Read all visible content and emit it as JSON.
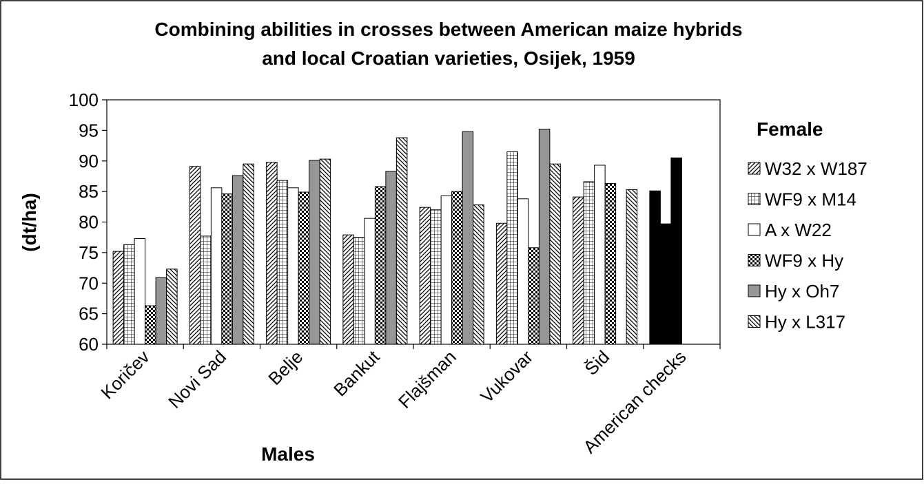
{
  "chart_data": {
    "type": "bar",
    "title_lines": [
      "Combining abilities in crosses between American maize hybrids",
      "and local Croatian varieties, Osijek, 1959"
    ],
    "xlabel": "Males",
    "ylabel": "(dt/ha)",
    "ylim": [
      60,
      100
    ],
    "yticks": [
      60,
      65,
      70,
      75,
      80,
      85,
      90,
      95,
      100
    ],
    "grid": false,
    "legend_title": "Female",
    "legend_position": "right",
    "categories": [
      "Koričev",
      "Novi Sad",
      "Belje",
      "Bankut",
      "Flajšman",
      "Vukovar",
      "Šid",
      "American checks"
    ],
    "series": [
      {
        "name": "W32 x W187",
        "pattern": "diagonal",
        "values": [
          75.2,
          89.1,
          89.8,
          77.9,
          82.4,
          79.8,
          84.1,
          85.1
        ]
      },
      {
        "name": "WF9 x M14",
        "pattern": "grid",
        "values": [
          76.3,
          77.7,
          86.8,
          77.5,
          82.0,
          91.5,
          86.6,
          79.7
        ]
      },
      {
        "name": "A x W22",
        "pattern": "white",
        "values": [
          77.3,
          85.6,
          85.6,
          80.6,
          84.3,
          83.8,
          89.3,
          90.5
        ]
      },
      {
        "name": "WF9 x Hy",
        "pattern": "checker",
        "values": [
          66.3,
          84.6,
          84.9,
          85.8,
          85.0,
          75.8,
          86.3,
          null
        ]
      },
      {
        "name": "Hy x Oh7",
        "pattern": "gray",
        "values": [
          70.9,
          87.6,
          90.1,
          88.3,
          94.8,
          95.2,
          null,
          null
        ]
      },
      {
        "name": "Hy x L317",
        "pattern": "backdiag",
        "values": [
          72.3,
          89.5,
          90.3,
          93.8,
          82.8,
          89.5,
          85.3,
          null
        ]
      }
    ],
    "american_checks_color": "#000000"
  }
}
